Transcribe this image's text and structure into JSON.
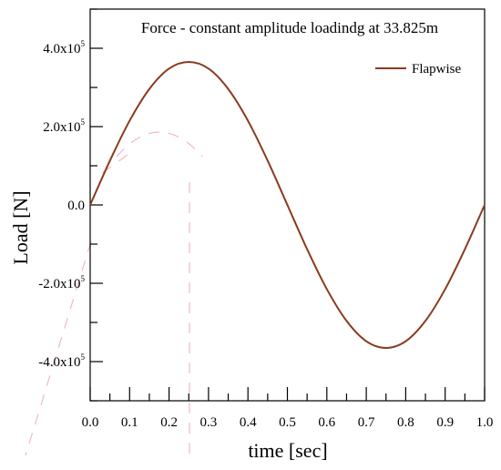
{
  "colors": {
    "series": "#8b3a1e",
    "axis": "#000000",
    "background": "#ffffff",
    "watermark": "#f2b7cc"
  },
  "chart_data": {
    "type": "line",
    "title": "Force - constant amplitude loadindg at 33.825m",
    "xlabel": "time [sec]",
    "ylabel": "Load [N]",
    "xlim": [
      0.0,
      1.0
    ],
    "ylim": [
      -5.0,
      5.0
    ],
    "x_ticks": [
      0.0,
      0.1,
      0.2,
      0.3,
      0.4,
      0.5,
      0.6,
      0.7,
      0.8,
      0.9,
      1.0
    ],
    "x_tick_labels": [
      "0.0",
      "0.1",
      "0.2",
      "0.3",
      "0.4",
      "0.5",
      "0.6",
      "0.7",
      "0.8",
      "0.9",
      "1.0"
    ],
    "y_ticks": [
      {
        "value": 4.0,
        "mantissa": "4.0x10",
        "exp": "5"
      },
      {
        "value": 2.0,
        "mantissa": "2.0x10",
        "exp": "5"
      },
      {
        "value": 0.0,
        "mantissa": "0.0",
        "exp": ""
      },
      {
        "value": -2.0,
        "mantissa": "-2.0x10",
        "exp": "5"
      },
      {
        "value": -4.0,
        "mantissa": "-4.0x10",
        "exp": "5"
      }
    ],
    "y_unit_note": "values x10^5 N",
    "legend_position": "top-right",
    "grid": false,
    "series": [
      {
        "name": "Flapwise",
        "x": [
          0.0,
          0.05,
          0.1,
          0.15,
          0.2,
          0.25,
          0.3,
          0.35,
          0.4,
          0.45,
          0.5,
          0.55,
          0.6,
          0.65,
          0.7,
          0.75,
          0.8,
          0.85,
          0.9,
          0.95,
          1.0
        ],
        "y": [
          0.0,
          1.13,
          2.15,
          2.96,
          3.48,
          3.65,
          3.48,
          2.96,
          2.15,
          1.13,
          0.0,
          -1.13,
          -2.15,
          -2.96,
          -3.48,
          -3.65,
          -3.48,
          -2.96,
          -2.15,
          -1.13,
          0.0
        ]
      }
    ]
  }
}
